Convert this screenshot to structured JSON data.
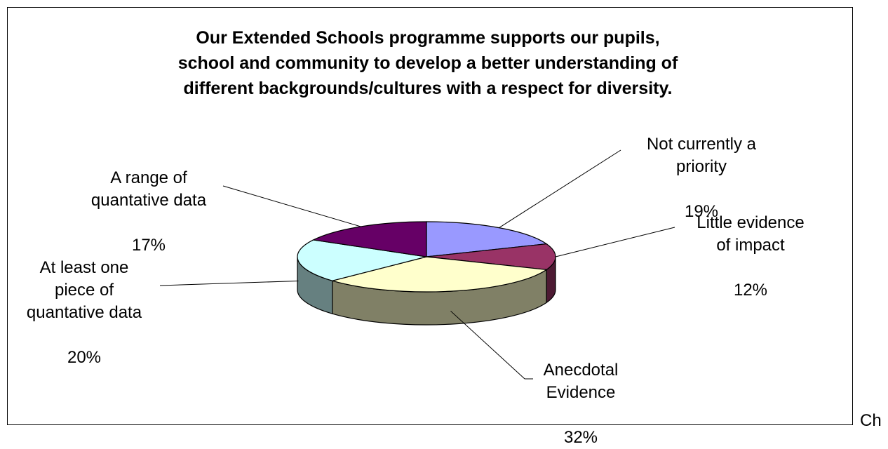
{
  "chart_data": {
    "type": "pie",
    "title": "Our Extended Schools programme supports our pupils,\nschool and community to develop a better understanding of\ndifferent backgrounds/cultures with a respect for diversity.",
    "slices": [
      {
        "name": "Not currently a\npriority",
        "value": 19,
        "label": "19%",
        "color": "#9999ff"
      },
      {
        "name": "Little evidence\nof impact",
        "value": 12,
        "label": "12%",
        "color": "#993366"
      },
      {
        "name": "Anecdotal\nEvidence",
        "value": 32,
        "label": "32%",
        "color": "#ffffcc"
      },
      {
        "name": "At least one\npiece of\nquantative data",
        "value": 20,
        "label": "20%",
        "color": "#ccffff"
      },
      {
        "name": "A range of\nquantative data",
        "value": 17,
        "label": "17%",
        "color": "#660066"
      }
    ],
    "start_angle_deg": 270,
    "direction": "clockwise",
    "style": "3d"
  },
  "trailing_text": "Ch"
}
